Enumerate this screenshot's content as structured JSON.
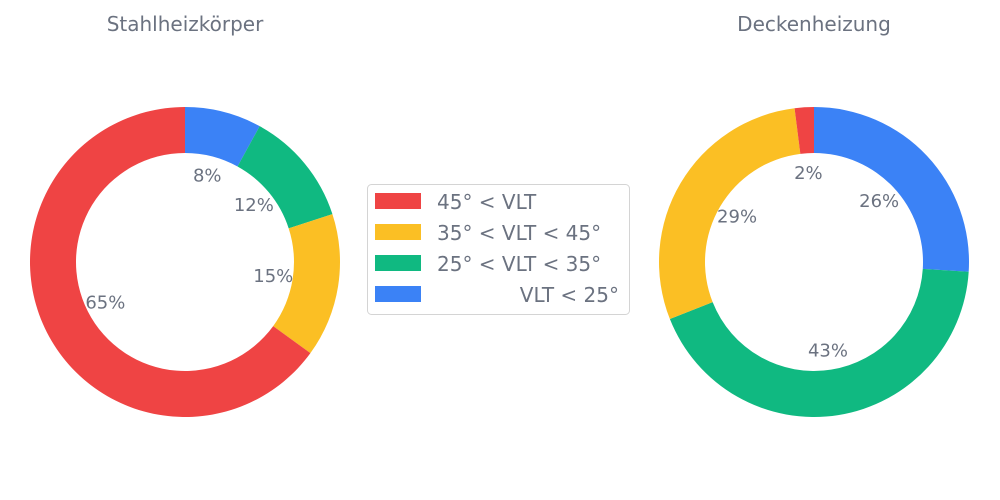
{
  "chart_data": [
    {
      "type": "pie",
      "title": "Stahlheizkörper",
      "slices": [
        {
          "label": "45° < VLT",
          "value": 65,
          "text": "65%"
        },
        {
          "label": "35° < VLT < 45°",
          "value": 15,
          "text": "15%"
        },
        {
          "label": "25° < VLT < 35°",
          "value": 12,
          "text": "12%"
        },
        {
          "label": "VLT < 25°",
          "value": 8,
          "text": "8%"
        }
      ]
    },
    {
      "type": "pie",
      "title": "Deckenheizung",
      "slices": [
        {
          "label": "45° < VLT",
          "value": 2,
          "text": "2%"
        },
        {
          "label": "35° < VLT < 45°",
          "value": 29,
          "text": "29%"
        },
        {
          "label": "25° < VLT < 35°",
          "value": 43,
          "text": "43%"
        },
        {
          "label": "VLT < 25°",
          "value": 26,
          "text": "26%"
        }
      ]
    }
  ],
  "legend": {
    "items": [
      {
        "label": "45° < VLT",
        "color": "#ef4444"
      },
      {
        "label": "35° < VLT < 45°",
        "color": "#fbbf24"
      },
      {
        "label": "25° < VLT < 35°",
        "color": "#10b981"
      },
      {
        "label": "VLT < 25°",
        "color": "#3b82f6"
      }
    ]
  },
  "colors": {
    "45° < VLT": "#ef4444",
    "35° < VLT < 45°": "#fbbf24",
    "25° < VLT < 35°": "#10b981",
    "VLT < 25°": "#3b82f6"
  }
}
